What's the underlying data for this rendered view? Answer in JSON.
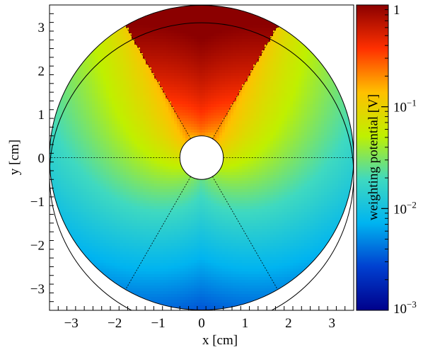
{
  "chart_data": {
    "type": "heatmap",
    "title": "",
    "xlabel": "x [cm]",
    "ylabel": "y [cm]",
    "zlabel": "weighting potential [V]",
    "xlim": [
      -3.5,
      3.5
    ],
    "ylim": [
      -3.5,
      3.5
    ],
    "x_ticks": [
      "−3",
      "−2",
      "−1",
      "0",
      "1",
      "2",
      "3"
    ],
    "y_ticks": [
      "−3",
      "−2",
      "−1",
      "0",
      "1",
      "2",
      "3"
    ],
    "zlim": [
      0.001,
      1
    ],
    "z_scale": "log",
    "z_ticks": [
      {
        "value": 1,
        "label": "1"
      },
      {
        "value": 0.1,
        "label": "10",
        "exp": "−1"
      },
      {
        "value": 0.01,
        "label": "10",
        "exp": "−2"
      },
      {
        "value": 0.001,
        "label": "10",
        "exp": "−3"
      }
    ],
    "colormap": [
      "#00008b",
      "#0040d0",
      "#00b4f0",
      "#3fd9c0",
      "#bff000",
      "#ffc000",
      "#ff3000",
      "#8b0000"
    ],
    "geometry": {
      "outer_radius_cm": 3.5,
      "inner_radius_cm": 0.5,
      "detector_center_offset_y_cm": -0.4,
      "detector_radius_cm": 3.5,
      "segment_boundaries_deg": [
        0,
        60,
        120,
        180,
        240,
        300
      ],
      "readout_segment_deg": [
        60,
        120
      ]
    }
  }
}
